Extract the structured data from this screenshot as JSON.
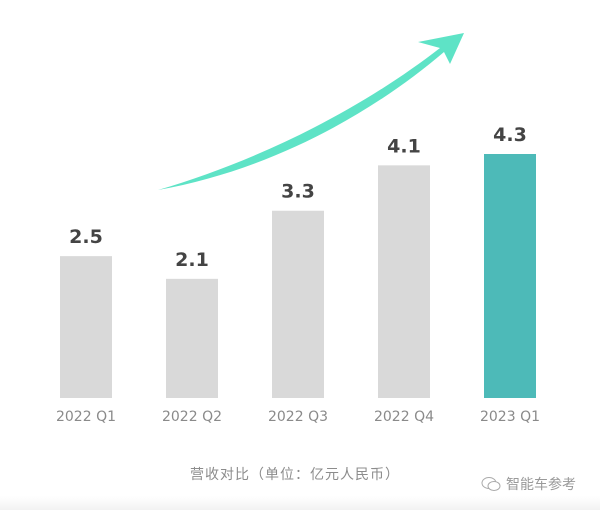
{
  "chart_data": {
    "type": "bar",
    "title": "营收对比（单位：亿元人民币）",
    "xlabel": "",
    "ylabel": "",
    "categories": [
      "2022 Q1",
      "2022 Q2",
      "2022 Q3",
      "2022 Q4",
      "2023 Q1"
    ],
    "values": [
      2.5,
      2.1,
      3.3,
      4.1,
      4.3
    ],
    "value_labels": [
      "2.5",
      "2.1",
      "3.3",
      "4.1",
      "4.3"
    ],
    "ylim": [
      0,
      4.3
    ],
    "grid": false,
    "highlight_index": 4,
    "colors": {
      "bar": "#d9d9d9",
      "highlight": "#4dbab8",
      "arrow": "#5ee3c6",
      "label": "#444444",
      "tick": "#8a8a8a"
    }
  },
  "watermark": "智能车参考"
}
